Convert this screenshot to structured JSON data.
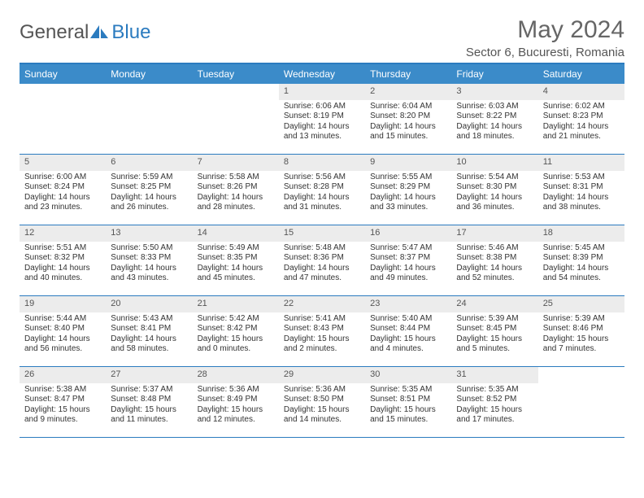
{
  "brand": {
    "part1": "General",
    "part2": "Blue"
  },
  "title": "May 2024",
  "location": "Sector 6, Bucuresti, Romania",
  "colors": {
    "header_bar": "#3b8bc9",
    "border": "#2b7bbf",
    "daynum_bg": "#ececec",
    "text": "#333333",
    "page_bg": "#ffffff"
  },
  "days_of_week": [
    "Sunday",
    "Monday",
    "Tuesday",
    "Wednesday",
    "Thursday",
    "Friday",
    "Saturday"
  ],
  "weeks": [
    [
      {
        "n": "",
        "sr": "",
        "ss": "",
        "d1": "",
        "d2": ""
      },
      {
        "n": "",
        "sr": "",
        "ss": "",
        "d1": "",
        "d2": ""
      },
      {
        "n": "",
        "sr": "",
        "ss": "",
        "d1": "",
        "d2": ""
      },
      {
        "n": "1",
        "sr": "Sunrise: 6:06 AM",
        "ss": "Sunset: 8:19 PM",
        "d1": "Daylight: 14 hours",
        "d2": "and 13 minutes."
      },
      {
        "n": "2",
        "sr": "Sunrise: 6:04 AM",
        "ss": "Sunset: 8:20 PM",
        "d1": "Daylight: 14 hours",
        "d2": "and 15 minutes."
      },
      {
        "n": "3",
        "sr": "Sunrise: 6:03 AM",
        "ss": "Sunset: 8:22 PM",
        "d1": "Daylight: 14 hours",
        "d2": "and 18 minutes."
      },
      {
        "n": "4",
        "sr": "Sunrise: 6:02 AM",
        "ss": "Sunset: 8:23 PM",
        "d1": "Daylight: 14 hours",
        "d2": "and 21 minutes."
      }
    ],
    [
      {
        "n": "5",
        "sr": "Sunrise: 6:00 AM",
        "ss": "Sunset: 8:24 PM",
        "d1": "Daylight: 14 hours",
        "d2": "and 23 minutes."
      },
      {
        "n": "6",
        "sr": "Sunrise: 5:59 AM",
        "ss": "Sunset: 8:25 PM",
        "d1": "Daylight: 14 hours",
        "d2": "and 26 minutes."
      },
      {
        "n": "7",
        "sr": "Sunrise: 5:58 AM",
        "ss": "Sunset: 8:26 PM",
        "d1": "Daylight: 14 hours",
        "d2": "and 28 minutes."
      },
      {
        "n": "8",
        "sr": "Sunrise: 5:56 AM",
        "ss": "Sunset: 8:28 PM",
        "d1": "Daylight: 14 hours",
        "d2": "and 31 minutes."
      },
      {
        "n": "9",
        "sr": "Sunrise: 5:55 AM",
        "ss": "Sunset: 8:29 PM",
        "d1": "Daylight: 14 hours",
        "d2": "and 33 minutes."
      },
      {
        "n": "10",
        "sr": "Sunrise: 5:54 AM",
        "ss": "Sunset: 8:30 PM",
        "d1": "Daylight: 14 hours",
        "d2": "and 36 minutes."
      },
      {
        "n": "11",
        "sr": "Sunrise: 5:53 AM",
        "ss": "Sunset: 8:31 PM",
        "d1": "Daylight: 14 hours",
        "d2": "and 38 minutes."
      }
    ],
    [
      {
        "n": "12",
        "sr": "Sunrise: 5:51 AM",
        "ss": "Sunset: 8:32 PM",
        "d1": "Daylight: 14 hours",
        "d2": "and 40 minutes."
      },
      {
        "n": "13",
        "sr": "Sunrise: 5:50 AM",
        "ss": "Sunset: 8:33 PM",
        "d1": "Daylight: 14 hours",
        "d2": "and 43 minutes."
      },
      {
        "n": "14",
        "sr": "Sunrise: 5:49 AM",
        "ss": "Sunset: 8:35 PM",
        "d1": "Daylight: 14 hours",
        "d2": "and 45 minutes."
      },
      {
        "n": "15",
        "sr": "Sunrise: 5:48 AM",
        "ss": "Sunset: 8:36 PM",
        "d1": "Daylight: 14 hours",
        "d2": "and 47 minutes."
      },
      {
        "n": "16",
        "sr": "Sunrise: 5:47 AM",
        "ss": "Sunset: 8:37 PM",
        "d1": "Daylight: 14 hours",
        "d2": "and 49 minutes."
      },
      {
        "n": "17",
        "sr": "Sunrise: 5:46 AM",
        "ss": "Sunset: 8:38 PM",
        "d1": "Daylight: 14 hours",
        "d2": "and 52 minutes."
      },
      {
        "n": "18",
        "sr": "Sunrise: 5:45 AM",
        "ss": "Sunset: 8:39 PM",
        "d1": "Daylight: 14 hours",
        "d2": "and 54 minutes."
      }
    ],
    [
      {
        "n": "19",
        "sr": "Sunrise: 5:44 AM",
        "ss": "Sunset: 8:40 PM",
        "d1": "Daylight: 14 hours",
        "d2": "and 56 minutes."
      },
      {
        "n": "20",
        "sr": "Sunrise: 5:43 AM",
        "ss": "Sunset: 8:41 PM",
        "d1": "Daylight: 14 hours",
        "d2": "and 58 minutes."
      },
      {
        "n": "21",
        "sr": "Sunrise: 5:42 AM",
        "ss": "Sunset: 8:42 PM",
        "d1": "Daylight: 15 hours",
        "d2": "and 0 minutes."
      },
      {
        "n": "22",
        "sr": "Sunrise: 5:41 AM",
        "ss": "Sunset: 8:43 PM",
        "d1": "Daylight: 15 hours",
        "d2": "and 2 minutes."
      },
      {
        "n": "23",
        "sr": "Sunrise: 5:40 AM",
        "ss": "Sunset: 8:44 PM",
        "d1": "Daylight: 15 hours",
        "d2": "and 4 minutes."
      },
      {
        "n": "24",
        "sr": "Sunrise: 5:39 AM",
        "ss": "Sunset: 8:45 PM",
        "d1": "Daylight: 15 hours",
        "d2": "and 5 minutes."
      },
      {
        "n": "25",
        "sr": "Sunrise: 5:39 AM",
        "ss": "Sunset: 8:46 PM",
        "d1": "Daylight: 15 hours",
        "d2": "and 7 minutes."
      }
    ],
    [
      {
        "n": "26",
        "sr": "Sunrise: 5:38 AM",
        "ss": "Sunset: 8:47 PM",
        "d1": "Daylight: 15 hours",
        "d2": "and 9 minutes."
      },
      {
        "n": "27",
        "sr": "Sunrise: 5:37 AM",
        "ss": "Sunset: 8:48 PM",
        "d1": "Daylight: 15 hours",
        "d2": "and 11 minutes."
      },
      {
        "n": "28",
        "sr": "Sunrise: 5:36 AM",
        "ss": "Sunset: 8:49 PM",
        "d1": "Daylight: 15 hours",
        "d2": "and 12 minutes."
      },
      {
        "n": "29",
        "sr": "Sunrise: 5:36 AM",
        "ss": "Sunset: 8:50 PM",
        "d1": "Daylight: 15 hours",
        "d2": "and 14 minutes."
      },
      {
        "n": "30",
        "sr": "Sunrise: 5:35 AM",
        "ss": "Sunset: 8:51 PM",
        "d1": "Daylight: 15 hours",
        "d2": "and 15 minutes."
      },
      {
        "n": "31",
        "sr": "Sunrise: 5:35 AM",
        "ss": "Sunset: 8:52 PM",
        "d1": "Daylight: 15 hours",
        "d2": "and 17 minutes."
      },
      {
        "n": "",
        "sr": "",
        "ss": "",
        "d1": "",
        "d2": ""
      }
    ]
  ]
}
